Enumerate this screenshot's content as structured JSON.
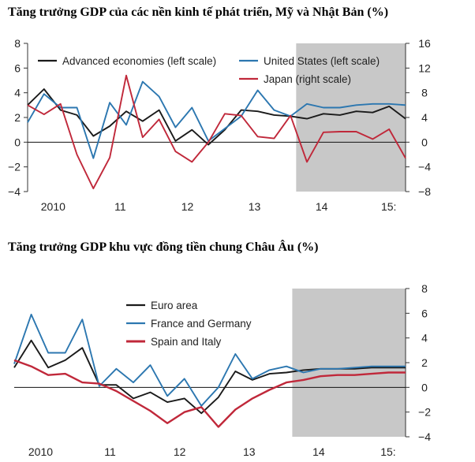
{
  "charts": [
    {
      "type": "line",
      "title": "Tăng trưởng GDP của các nền kinh tế phát triển, Mỹ và Nhật Bản (%)",
      "x": [
        2009.0,
        2009.25,
        2009.5,
        2009.75,
        2010.0,
        2010.25,
        2010.5,
        2010.75,
        2011.0,
        2011.25,
        2011.5,
        2011.75,
        2012.0,
        2012.25,
        2012.5,
        2012.75,
        2013.0,
        2013.25,
        2013.5,
        2013.75,
        2014.0,
        2014.25,
        2014.5,
        2014.75,
        2015.0,
        2015.25
      ],
      "xlim": [
        2009.62,
        2015.25
      ],
      "x_tick_labels": [
        {
          "x": 2010.0,
          "label": "2010"
        },
        {
          "x": 2011.0,
          "label": "11"
        },
        {
          "x": 2012.0,
          "label": "12"
        },
        {
          "x": 2013.0,
          "label": "13"
        },
        {
          "x": 2014.0,
          "label": "14"
        },
        {
          "x": 2015.0,
          "label": "15:"
        }
      ],
      "shaded_from": 2013.62,
      "left_axis": {
        "ylim": [
          -4,
          8
        ],
        "ticks": [
          "−4",
          "−2",
          "0",
          "2",
          "4",
          "6",
          "8"
        ],
        "values": [
          -4,
          -2,
          0,
          2,
          4,
          6,
          8
        ]
      },
      "right_axis": {
        "ylim": [
          -8,
          16
        ],
        "ticks": [
          "−8",
          "−4",
          "0",
          "4",
          "8",
          "12",
          "16"
        ],
        "values": [
          -8,
          -4,
          0,
          4,
          8,
          12,
          16
        ]
      },
      "series": [
        {
          "name": "Advanced economies (left scale)",
          "axis": "left",
          "color": "#1a1a1a",
          "x_start": 2009.62,
          "values": [
            3.0,
            4.3,
            2.6,
            2.2,
            0.5,
            1.3,
            2.5,
            1.7,
            2.6,
            0.1,
            1.0,
            -0.2,
            1.0,
            2.6,
            2.5,
            2.2,
            2.1,
            1.9,
            2.3,
            2.2,
            2.5,
            2.4,
            2.9,
            1.9
          ]
        },
        {
          "name": "United States (left scale)",
          "axis": "left",
          "color": "#2c77b0",
          "x_start": 2009.62,
          "values": [
            1.6,
            3.9,
            2.8,
            2.8,
            -1.3,
            3.2,
            1.4,
            4.9,
            3.7,
            1.2,
            2.8,
            0.1,
            1.1,
            2.1,
            4.2,
            2.6,
            2.1,
            3.1,
            2.8,
            2.8,
            3.0,
            3.1,
            3.1,
            3.0
          ]
        },
        {
          "name": "Japan (right scale)",
          "axis": "right",
          "color": "#c0283a",
          "x_start": 2009.62,
          "values": [
            6.0,
            4.5,
            6.2,
            -2.0,
            -7.5,
            -2.5,
            10.8,
            0.8,
            3.7,
            -1.5,
            -3.2,
            0.0,
            4.6,
            4.3,
            0.9,
            0.6,
            4.3,
            -3.2,
            1.6,
            1.7,
            1.7,
            0.5,
            2.1,
            -2.6
          ]
        }
      ]
    },
    {
      "type": "line",
      "title": "Tăng trưởng GDP khu vực đồng tiền chung Châu Âu (%)",
      "xlim": [
        2009.62,
        2015.25
      ],
      "x_tick_labels": [
        {
          "x": 2010.0,
          "label": "2010"
        },
        {
          "x": 2011.0,
          "label": "11"
        },
        {
          "x": 2012.0,
          "label": "12"
        },
        {
          "x": 2013.0,
          "label": "13"
        },
        {
          "x": 2014.0,
          "label": "14"
        },
        {
          "x": 2015.0,
          "label": "15:"
        }
      ],
      "shaded_from": 2013.62,
      "right_axis": {
        "ylim": [
          -4,
          8
        ],
        "ticks": [
          "−4",
          "−2",
          "0",
          "2",
          "4",
          "6",
          "8"
        ],
        "values": [
          -4,
          -2,
          0,
          2,
          4,
          6,
          8
        ]
      },
      "series": [
        {
          "name": "Euro area",
          "color": "#1a1a1a",
          "x_start": 2009.62,
          "values": [
            1.6,
            3.8,
            1.6,
            2.2,
            3.2,
            0.2,
            0.2,
            -0.9,
            -0.4,
            -1.2,
            -0.9,
            -2.1,
            -0.8,
            1.3,
            0.6,
            1.1,
            1.2,
            1.4,
            1.5,
            1.5,
            1.5,
            1.6,
            1.6,
            1.6
          ]
        },
        {
          "name": "France and Germany",
          "color": "#2c77b0",
          "x_start": 2009.62,
          "values": [
            1.9,
            5.9,
            2.8,
            2.8,
            5.5,
            0.1,
            1.5,
            0.4,
            1.8,
            -0.7,
            0.7,
            -1.5,
            0.0,
            2.7,
            0.7,
            1.4,
            1.7,
            1.2,
            1.5,
            1.5,
            1.6,
            1.7,
            1.7,
            1.7
          ]
        },
        {
          "name": "Spain and Italy",
          "color": "#c0283a",
          "x_start": 2009.62,
          "values": [
            2.2,
            1.7,
            1.0,
            1.1,
            0.4,
            0.3,
            -0.3,
            -1.1,
            -1.9,
            -2.9,
            -2.0,
            -1.6,
            -3.2,
            -1.8,
            -0.9,
            -0.2,
            0.4,
            0.6,
            0.9,
            1.0,
            1.0,
            1.1,
            1.2,
            1.2
          ]
        }
      ]
    }
  ]
}
